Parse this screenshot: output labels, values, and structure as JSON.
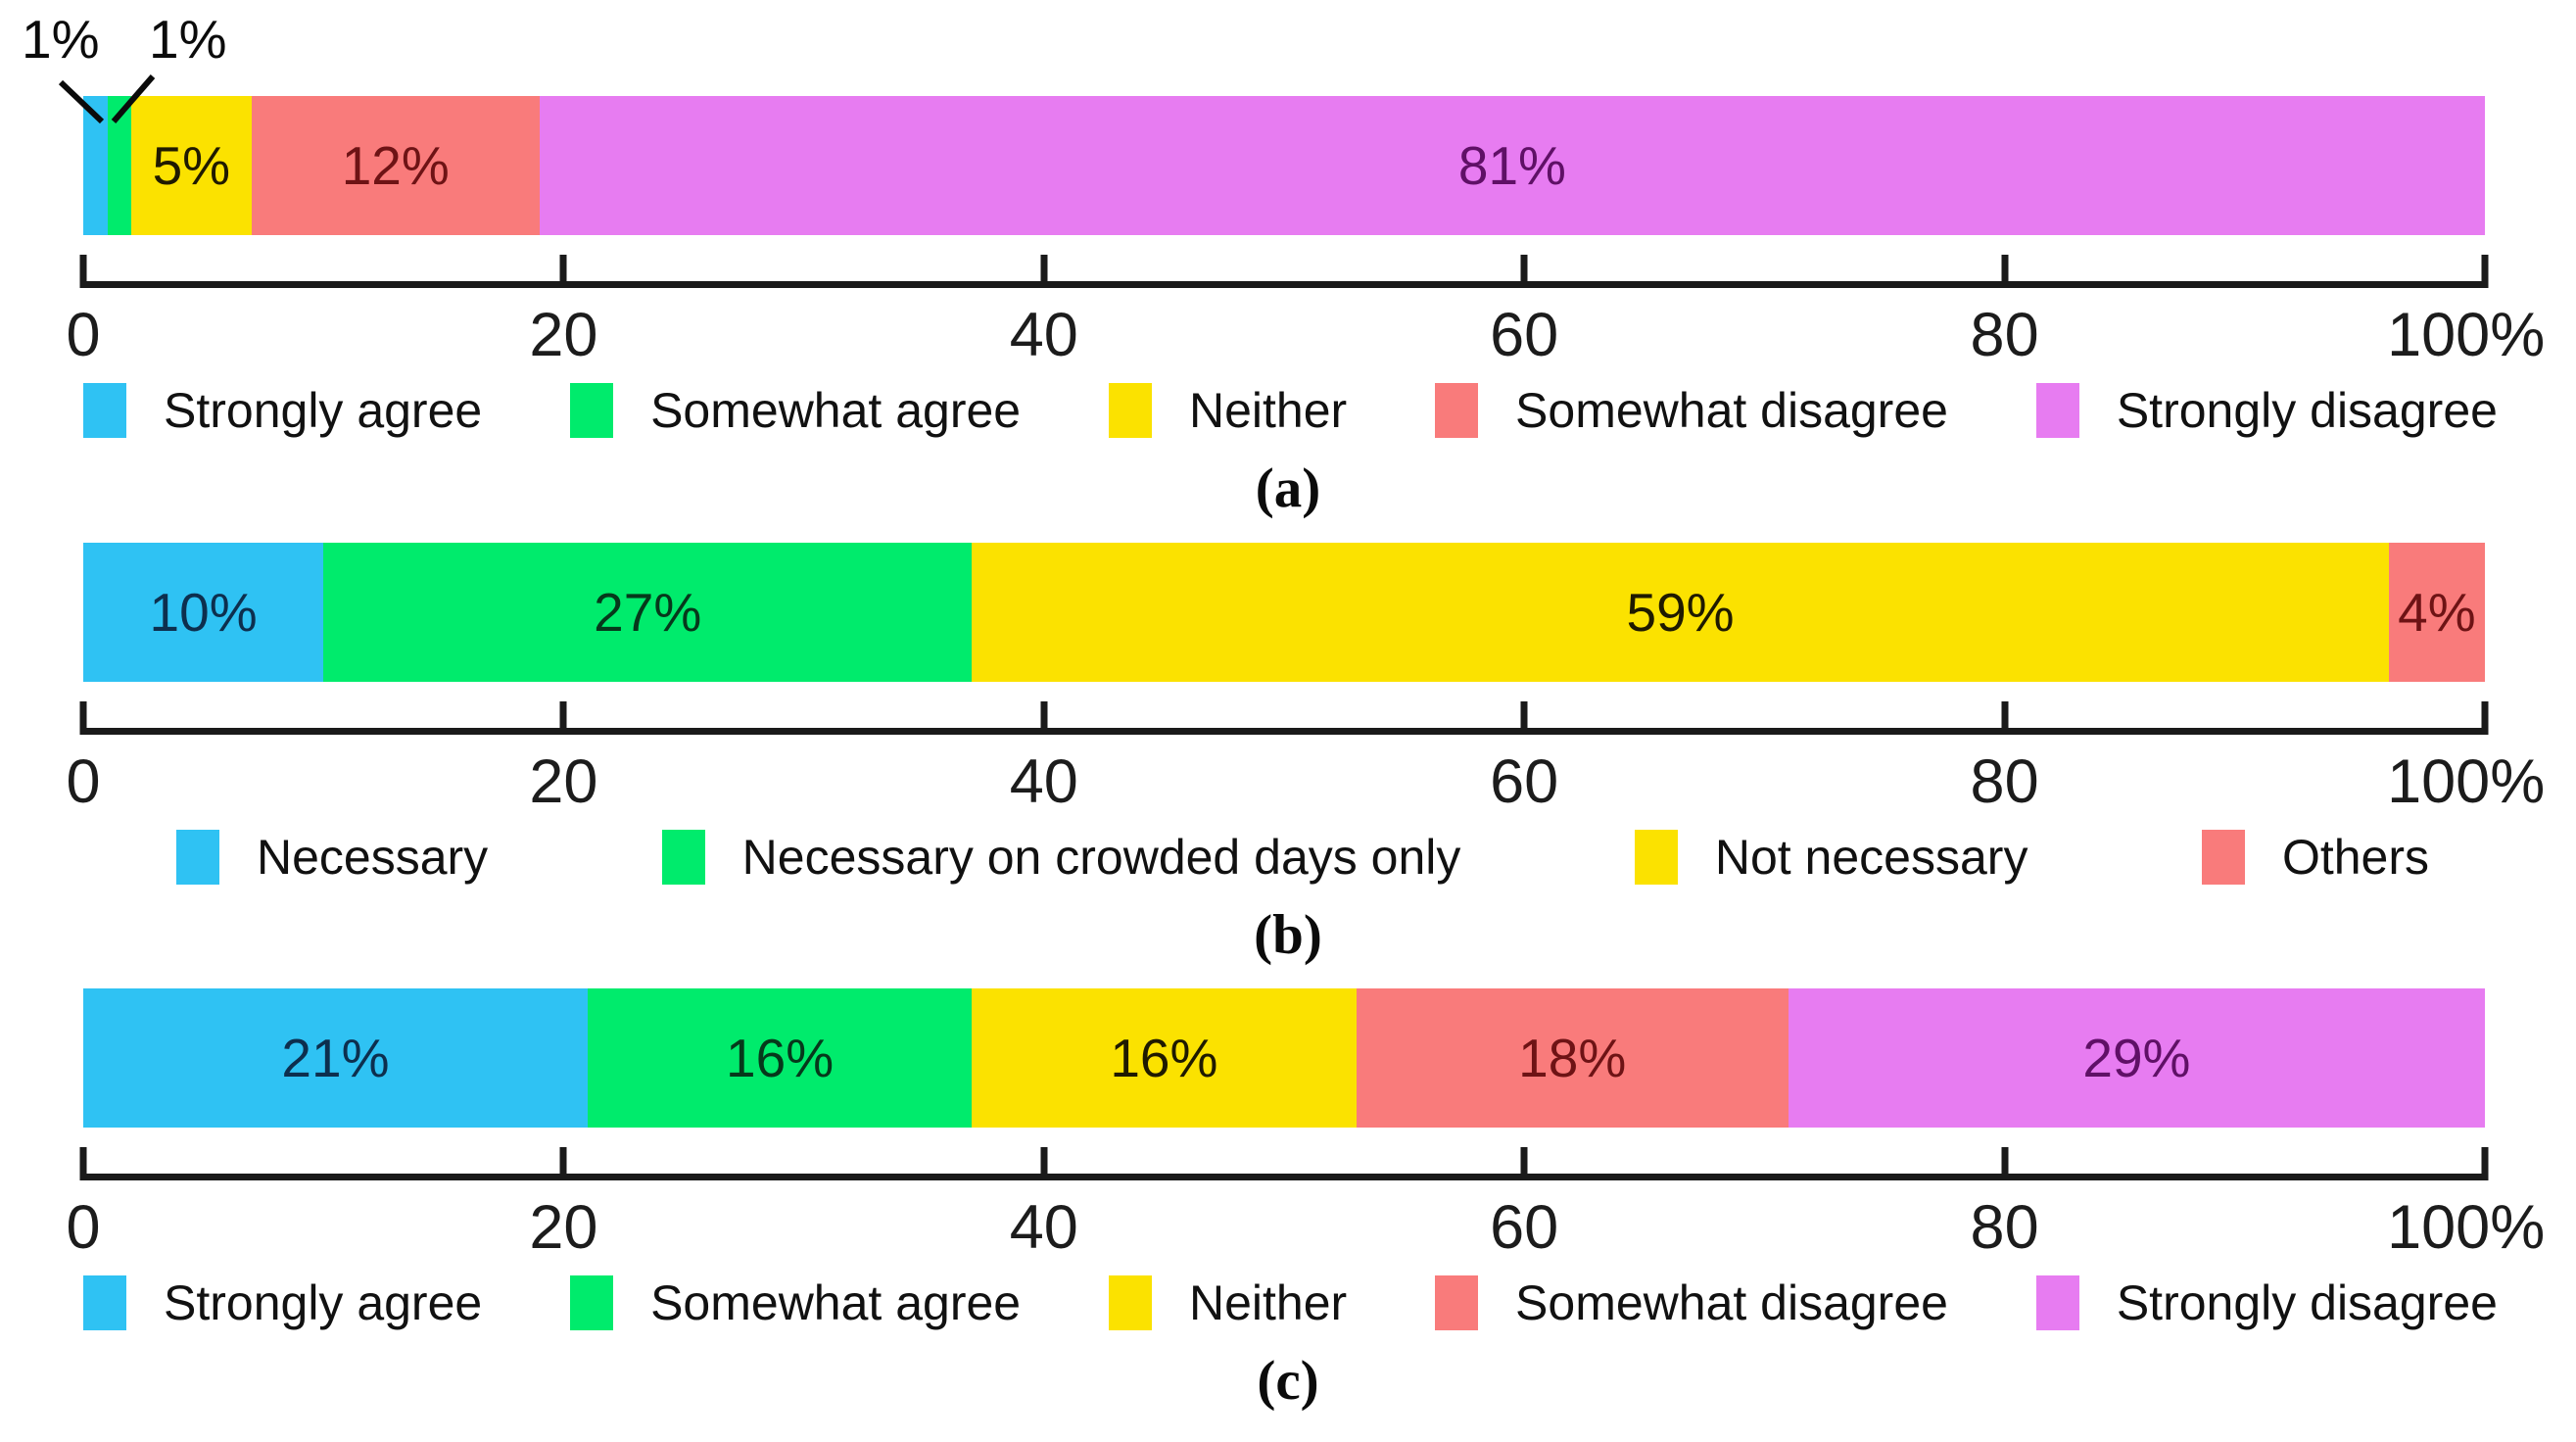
{
  "palette": {
    "blue": "#2FC2F3",
    "green": "#00EB6C",
    "yellow": "#FBE200",
    "salmon": "#F97B7B",
    "magenta": "#E77CF1",
    "axis": "#1a1a1a"
  },
  "charts": [
    {
      "caption": "(a)",
      "annotations": [
        {
          "text": "1%"
        },
        {
          "text": "1%"
        }
      ],
      "segments": [
        {
          "name": "Strongly agree",
          "value": 1,
          "label": "",
          "color": "#2FC2F3",
          "text_color": "#0d2f4e"
        },
        {
          "name": "Somewhat agree",
          "value": 1,
          "label": "",
          "color": "#00EB6C",
          "text_color": "#06381b"
        },
        {
          "name": "Neither",
          "value": 5,
          "label": "5%",
          "color": "#FBE200",
          "text_color": "#1f1a00"
        },
        {
          "name": "Somewhat disagree",
          "value": 12,
          "label": "12%",
          "color": "#F97B7B",
          "text_color": "#6e1315"
        },
        {
          "name": "Strongly disagree",
          "value": 81,
          "label": "81%",
          "color": "#E77CF1",
          "text_color": "#5f1066"
        }
      ],
      "ticks": [
        "0",
        "20",
        "40",
        "60",
        "80",
        "100%"
      ],
      "legend": [
        {
          "label": "Strongly agree",
          "color": "#2FC2F3"
        },
        {
          "label": "Somewhat agree",
          "color": "#00EB6C"
        },
        {
          "label": "Neither",
          "color": "#FBE200"
        },
        {
          "label": "Somewhat disagree",
          "color": "#F97B7B"
        },
        {
          "label": "Strongly disagree",
          "color": "#E77CF1"
        }
      ],
      "legend_pad": "pad-a"
    },
    {
      "caption": "(b)",
      "annotations": [],
      "segments": [
        {
          "name": "Necessary",
          "value": 10,
          "label": "10%",
          "color": "#2FC2F3",
          "text_color": "#0d2f4e"
        },
        {
          "name": "Necessary on crowded days only",
          "value": 27,
          "label": "27%",
          "color": "#00EB6C",
          "text_color": "#06381b"
        },
        {
          "name": "Not necessary",
          "value": 59,
          "label": "59%",
          "color": "#FBE200",
          "text_color": "#1f1a00"
        },
        {
          "name": "Others",
          "value": 4,
          "label": "4%",
          "color": "#F97B7B",
          "text_color": "#6e1315"
        }
      ],
      "ticks": [
        "0",
        "20",
        "40",
        "60",
        "80",
        "100%"
      ],
      "legend": [
        {
          "label": "Necessary",
          "color": "#2FC2F3"
        },
        {
          "label": "Necessary on crowded days only",
          "color": "#00EB6C"
        },
        {
          "label": "Not necessary",
          "color": "#FBE200"
        },
        {
          "label": "Others",
          "color": "#F97B7B"
        }
      ],
      "legend_pad": "pad-b"
    },
    {
      "caption": "(c)",
      "annotations": [],
      "segments": [
        {
          "name": "Strongly agree",
          "value": 21,
          "label": "21%",
          "color": "#2FC2F3",
          "text_color": "#0d2f4e"
        },
        {
          "name": "Somewhat agree",
          "value": 16,
          "label": "16%",
          "color": "#00EB6C",
          "text_color": "#06381b"
        },
        {
          "name": "Neither",
          "value": 16,
          "label": "16%",
          "color": "#FBE200",
          "text_color": "#1f1a00"
        },
        {
          "name": "Somewhat disagree",
          "value": 18,
          "label": "18%",
          "color": "#F97B7B",
          "text_color": "#6e1315"
        },
        {
          "name": "Strongly disagree",
          "value": 29,
          "label": "29%",
          "color": "#E77CF1",
          "text_color": "#5f1066"
        }
      ],
      "ticks": [
        "0",
        "20",
        "40",
        "60",
        "80",
        "100%"
      ],
      "legend": [
        {
          "label": "Strongly agree",
          "color": "#2FC2F3"
        },
        {
          "label": "Somewhat agree",
          "color": "#00EB6C"
        },
        {
          "label": "Neither",
          "color": "#FBE200"
        },
        {
          "label": "Somewhat disagree",
          "color": "#F97B7B"
        },
        {
          "label": "Strongly disagree",
          "color": "#E77CF1"
        }
      ],
      "legend_pad": "pad-a"
    }
  ],
  "chart_data": [
    {
      "type": "bar",
      "orientation": "horizontal",
      "stacked": true,
      "panel": "(a)",
      "categories": [
        "Strongly agree",
        "Somewhat agree",
        "Neither",
        "Somewhat disagree",
        "Strongly disagree"
      ],
      "values": [
        1,
        1,
        5,
        12,
        81
      ],
      "data_labels": [
        "1%",
        "1%",
        "5%",
        "12%",
        "81%"
      ],
      "xlim": [
        0,
        100
      ],
      "xticks": [
        0,
        20,
        40,
        60,
        80,
        100
      ],
      "xtick_labels": [
        "0",
        "20",
        "40",
        "60",
        "80",
        "100%"
      ],
      "legend_position": "bottom",
      "grid": false
    },
    {
      "type": "bar",
      "orientation": "horizontal",
      "stacked": true,
      "panel": "(b)",
      "categories": [
        "Necessary",
        "Necessary on crowded days only",
        "Not necessary",
        "Others"
      ],
      "values": [
        10,
        27,
        59,
        4
      ],
      "data_labels": [
        "10%",
        "27%",
        "59%",
        "4%"
      ],
      "xlim": [
        0,
        100
      ],
      "xticks": [
        0,
        20,
        40,
        60,
        80,
        100
      ],
      "xtick_labels": [
        "0",
        "20",
        "40",
        "60",
        "80",
        "100%"
      ],
      "legend_position": "bottom",
      "grid": false
    },
    {
      "type": "bar",
      "orientation": "horizontal",
      "stacked": true,
      "panel": "(c)",
      "categories": [
        "Strongly agree",
        "Somewhat agree",
        "Neither",
        "Somewhat disagree",
        "Strongly disagree"
      ],
      "values": [
        21,
        16,
        16,
        18,
        29
      ],
      "data_labels": [
        "21%",
        "16%",
        "16%",
        "18%",
        "29%"
      ],
      "xlim": [
        0,
        100
      ],
      "xticks": [
        0,
        20,
        40,
        60,
        80,
        100
      ],
      "xtick_labels": [
        "0",
        "20",
        "40",
        "60",
        "80",
        "100%"
      ],
      "legend_position": "bottom",
      "grid": false
    }
  ]
}
